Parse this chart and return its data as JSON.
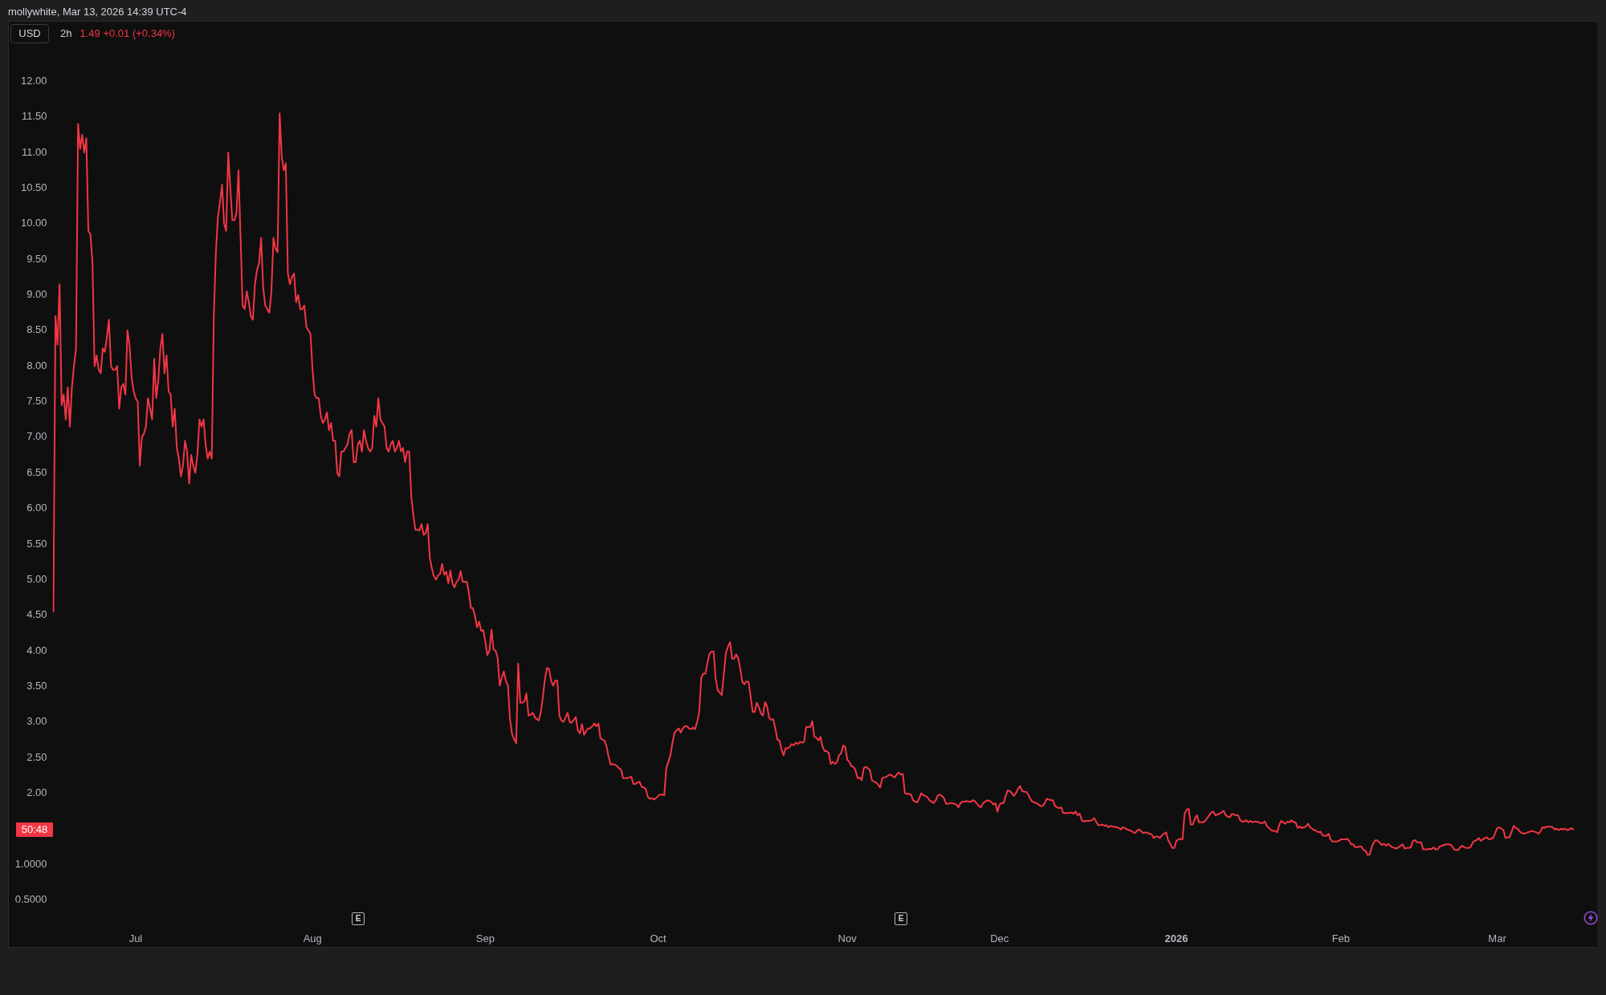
{
  "chart_data": {
    "type": "line",
    "title": "2h",
    "subtitle": "1.49 +0.01 (+0.34%)",
    "ylabel": "USD",
    "annotations": [
      "mollywhite, Mar 13, 2026 14:39 UTC-4",
      "E",
      "E",
      "50:48"
    ],
    "color": "#f23645",
    "ylim": [
      0.5,
      12.85
    ],
    "yticks": [
      {
        "value": 0.5,
        "label": "0.5000"
      },
      {
        "value": 1,
        "label": "1.0000"
      },
      {
        "value": 2,
        "label": "2.00"
      },
      {
        "value": 2.5,
        "label": "2.50"
      },
      {
        "value": 3,
        "label": "3.00"
      },
      {
        "value": 3.5,
        "label": "3.50"
      },
      {
        "value": 4,
        "label": "4.00"
      },
      {
        "value": 4.5,
        "label": "4.50"
      },
      {
        "value": 5,
        "label": "5.00"
      },
      {
        "value": 5.5,
        "label": "5.50"
      },
      {
        "value": 6,
        "label": "6.00"
      },
      {
        "value": 6.5,
        "label": "6.50"
      },
      {
        "value": 7,
        "label": "7.00"
      },
      {
        "value": 7.5,
        "label": "7.50"
      },
      {
        "value": 8,
        "label": "8.00"
      },
      {
        "value": 8.5,
        "label": "8.50"
      },
      {
        "value": 9,
        "label": "9.00"
      },
      {
        "value": 9.5,
        "label": "9.50"
      },
      {
        "value": 10,
        "label": "10.00"
      },
      {
        "value": 10.5,
        "label": "10.50"
      },
      {
        "value": 11,
        "label": "11.00"
      },
      {
        "value": 11.5,
        "label": "11.50"
      },
      {
        "value": 12,
        "label": "12.00"
      }
    ],
    "categories": [
      null,
      null,
      null,
      null,
      null,
      null,
      null,
      null,
      null,
      null,
      null,
      null,
      null,
      null,
      null,
      null,
      null,
      null,
      null,
      null,
      null,
      null,
      null,
      null,
      null,
      null,
      null,
      null,
      null,
      null,
      null,
      null,
      null,
      null,
      null,
      null,
      null,
      null,
      null,
      null,
      "Jul",
      null,
      null,
      null,
      null,
      null,
      null,
      null,
      null,
      null,
      null,
      null,
      null,
      null,
      null,
      null,
      null,
      null,
      null,
      null,
      null,
      null,
      null,
      null,
      null,
      null,
      null,
      null,
      null,
      null,
      null,
      null,
      null,
      null,
      null,
      null,
      null,
      null,
      null,
      null,
      null,
      null,
      null,
      null,
      null,
      null,
      null,
      null,
      null,
      null,
      null,
      null,
      null,
      null,
      null,
      null,
      null,
      null,
      null,
      null,
      null,
      null,
      null,
      null,
      null,
      null,
      null,
      null,
      null,
      null,
      null,
      null,
      null,
      null,
      null,
      null,
      null,
      null,
      null,
      null,
      null,
      null,
      null,
      null,
      null,
      null,
      "Aug",
      null,
      null,
      null,
      null,
      null,
      null,
      null,
      null,
      null,
      null,
      null,
      null,
      null,
      null,
      null,
      null,
      null,
      null,
      null,
      null,
      null,
      null,
      null,
      null,
      null,
      null,
      null,
      null,
      null,
      null,
      null,
      null,
      null,
      null,
      null,
      null,
      null,
      null,
      null,
      null,
      null,
      null,
      null,
      null,
      null,
      null,
      null,
      null,
      null,
      null,
      null,
      null,
      null,
      null,
      null,
      null,
      null,
      null,
      null,
      null,
      null,
      null,
      null,
      null,
      null,
      null,
      null,
      null,
      null,
      null,
      null,
      null,
      null,
      null,
      null,
      null,
      null,
      null,
      null,
      null,
      null,
      null,
      null,
      "Sep",
      null,
      null,
      null,
      null,
      null,
      null,
      null,
      null,
      null,
      null,
      null,
      null,
      null,
      null,
      null,
      null,
      null,
      null,
      null,
      null,
      null,
      null,
      null,
      null,
      null,
      null,
      null,
      null,
      null,
      null,
      null,
      null,
      null,
      null,
      null,
      null,
      null,
      null,
      null,
      null,
      null,
      null,
      null,
      null,
      null,
      null,
      null,
      null,
      null,
      null,
      null,
      null,
      null,
      null,
      null,
      null,
      null,
      null,
      null,
      null,
      null,
      null,
      null,
      null,
      null,
      null,
      null,
      null,
      null,
      null,
      null,
      null,
      null,
      null,
      null,
      null,
      null,
      null,
      null,
      null,
      null,
      null,
      null,
      "Oct",
      null,
      null,
      null,
      null,
      null,
      null,
      null,
      null,
      null,
      null,
      null,
      null,
      null,
      null,
      null,
      null,
      null,
      null,
      null,
      null,
      null,
      null,
      null,
      null,
      null,
      null,
      null,
      null,
      null,
      null,
      null,
      null,
      null,
      null,
      null,
      null,
      null,
      null,
      null,
      null,
      null,
      null,
      null,
      null,
      null,
      null,
      null,
      null,
      null,
      null,
      null,
      null,
      null,
      null,
      null,
      null,
      null,
      null,
      null,
      null,
      null,
      null,
      null,
      null,
      null,
      null,
      null,
      null,
      null,
      null,
      null,
      null,
      null,
      null,
      null,
      null,
      null,
      null,
      null,
      null,
      null,
      null,
      null,
      null,
      null,
      null,
      null,
      null,
      null,
      null,
      null,
      "Nov",
      null,
      null,
      null,
      null,
      null,
      null,
      null,
      null,
      null,
      null,
      null,
      null,
      null,
      null,
      null,
      null,
      null,
      null,
      null,
      null,
      null,
      null,
      null,
      null,
      null,
      null,
      null,
      null,
      null,
      null,
      null,
      null,
      null,
      null,
      null,
      null,
      null,
      null,
      null,
      null,
      null,
      null,
      null,
      null,
      null,
      null,
      null,
      null,
      null,
      null,
      null,
      null,
      null,
      null,
      null,
      null,
      null,
      null,
      null,
      null,
      null,
      null,
      null,
      null,
      null,
      null,
      null,
      null,
      null,
      null,
      null,
      null,
      null,
      "Dec",
      null,
      null,
      null,
      null,
      null,
      null,
      null,
      null,
      null,
      null,
      null,
      null,
      null,
      null,
      null,
      null,
      null,
      null,
      null,
      null,
      null,
      null,
      null,
      null,
      null,
      null,
      null,
      null,
      null,
      null,
      null,
      null,
      null,
      null,
      null,
      null,
      null,
      null,
      null,
      null,
      null,
      null,
      null,
      null,
      null,
      null,
      null,
      null,
      null,
      null,
      null,
      null,
      null,
      null,
      null,
      null,
      null,
      null,
      null,
      null,
      null,
      null,
      null,
      null,
      null,
      null,
      null,
      null,
      null,
      null,
      null,
      null,
      null,
      null,
      null,
      null,
      null,
      null,
      null,
      null,
      null,
      null,
      null,
      null,
      null,
      "2026",
      null,
      null,
      null,
      null,
      null,
      null,
      null,
      null,
      null,
      null,
      null,
      null,
      null,
      null,
      null,
      null,
      null,
      null,
      null,
      null,
      null,
      null,
      null,
      null,
      null,
      null,
      null,
      null,
      null,
      null,
      null,
      null,
      null,
      null,
      null,
      null,
      null,
      null,
      null,
      null,
      null,
      null,
      null,
      null,
      null,
      null,
      null,
      null,
      null,
      null,
      null,
      null,
      null,
      null,
      null,
      null,
      null,
      null,
      null,
      null,
      null,
      null,
      null,
      null,
      null,
      null,
      null,
      null,
      null,
      null,
      null,
      null,
      null,
      null,
      null,
      null,
      null,
      null,
      null,
      "Feb",
      null,
      null,
      null,
      null,
      null,
      null,
      null,
      null,
      null,
      null,
      null,
      null,
      null,
      null,
      null,
      null,
      null,
      null,
      null,
      null,
      null,
      null,
      null,
      null,
      null,
      null,
      null,
      null,
      null,
      null,
      null,
      null,
      null,
      null,
      null,
      null,
      null,
      null,
      null,
      null,
      null,
      null,
      null,
      null,
      null,
      null,
      null,
      null,
      null,
      null,
      null,
      null,
      null,
      null,
      null,
      null,
      null,
      null,
      null,
      null,
      null,
      null,
      null,
      null,
      null,
      null,
      null,
      null,
      null,
      null,
      null,
      null,
      null,
      null,
      null,
      "Mar",
      null,
      null,
      null,
      null,
      null,
      null,
      null,
      null,
      null,
      null,
      null,
      null,
      null,
      null,
      null,
      null,
      null,
      null,
      null,
      null,
      null,
      null,
      null,
      null,
      null,
      null,
      null,
      null,
      null,
      null,
      null,
      null,
      null,
      null,
      null,
      null,
      null
    ],
    "values": [
      4.55,
      8.7,
      8.3,
      9.15,
      7.45,
      7.6,
      7.25,
      7.7,
      7.15,
      7.7,
      8.0,
      8.25,
      11.4,
      11.05,
      11.25,
      11.0,
      11.2,
      9.9,
      9.85,
      9.45,
      8.0,
      8.15,
      7.95,
      7.9,
      8.25,
      8.2,
      8.4,
      8.65,
      8.0,
      7.95,
      7.95,
      8.0,
      7.4,
      7.7,
      7.75,
      7.6,
      8.5,
      8.3,
      7.85,
      7.65,
      7.55,
      7.5,
      6.6,
      7.0,
      7.05,
      7.15,
      7.55,
      7.4,
      7.25,
      8.1,
      7.55,
      7.8,
      8.25,
      8.45,
      7.9,
      8.15,
      7.65,
      7.6,
      7.15,
      7.4,
      6.85,
      6.7,
      6.45,
      6.6,
      6.95,
      6.8,
      6.35,
      6.75,
      6.6,
      6.5,
      6.75,
      7.25,
      7.15,
      7.25,
      6.9,
      6.7,
      6.8,
      6.7,
      8.7,
      9.6,
      10.1,
      10.3,
      10.55,
      10.0,
      9.9,
      11.0,
      10.5,
      10.05,
      10.05,
      10.15,
      10.75,
      9.8,
      8.85,
      8.8,
      9.05,
      8.9,
      8.7,
      8.65,
      9.15,
      9.35,
      9.45,
      9.8,
      9.1,
      8.85,
      8.8,
      8.75,
      9.05,
      9.8,
      9.65,
      9.6,
      11.55,
      10.95,
      10.75,
      10.85,
      9.3,
      9.15,
      9.25,
      9.3,
      8.9,
      9.0,
      8.8,
      8.8,
      8.85,
      8.55,
      8.5,
      8.45,
      7.95,
      7.6,
      7.55,
      7.55,
      7.3,
      7.2,
      7.25,
      7.35,
      7.1,
      7.2,
      6.95,
      6.95,
      6.5,
      6.45,
      6.8,
      6.8,
      6.85,
      6.9,
      7.05,
      7.1,
      6.65,
      6.65,
      6.9,
      6.95,
      6.8,
      7.1,
      6.95,
      6.85,
      6.8,
      6.85,
      7.3,
      7.15,
      7.55,
      7.25,
      7.2,
      7.15,
      6.85,
      6.8,
      6.9,
      6.95,
      6.8,
      6.85,
      6.95,
      6.8,
      6.85,
      6.65,
      6.8,
      6.8,
      6.17,
      5.91,
      5.7,
      5.7,
      5.69,
      5.78,
      5.63,
      5.65,
      5.78,
      5.31,
      5.16,
      5.05,
      5.0,
      5.06,
      5.08,
      5.22,
      5.07,
      5.11,
      4.95,
      5.13,
      4.95,
      4.89,
      4.97,
      5.0,
      5.12,
      4.97,
      4.97,
      4.97,
      4.82,
      4.6,
      4.6,
      4.48,
      4.33,
      4.41,
      4.28,
      4.29,
      4.13,
      3.94,
      4.0,
      4.3,
      4.02,
      4.0,
      3.9,
      3.51,
      3.62,
      3.71,
      3.58,
      3.51,
      3.04,
      2.83,
      2.76,
      2.7,
      3.82,
      3.27,
      3.27,
      3.29,
      3.4,
      3.09,
      3.1,
      3.13,
      3.07,
      3.04,
      3.02,
      3.14,
      3.35,
      3.61,
      3.76,
      3.74,
      3.58,
      3.51,
      3.58,
      3.58,
      3.09,
      3.02,
      3.0,
      3.06,
      3.13,
      3.0,
      2.99,
      3.03,
      3.07,
      2.88,
      2.84,
      2.97,
      2.82,
      2.87,
      2.91,
      2.91,
      2.94,
      2.98,
      2.94,
      2.98,
      2.77,
      2.75,
      2.74,
      2.65,
      2.5,
      2.4,
      2.41,
      2.4,
      2.38,
      2.35,
      2.33,
      2.21,
      2.21,
      2.21,
      2.22,
      2.23,
      2.13,
      2.13,
      2.15,
      2.16,
      2.09,
      2.08,
      2.06,
      1.95,
      1.92,
      1.93,
      1.91,
      1.93,
      1.96,
      1.98,
      1.98,
      1.97,
      2.35,
      2.44,
      2.53,
      2.71,
      2.85,
      2.88,
      2.91,
      2.85,
      2.91,
      2.94,
      2.94,
      2.91,
      2.9,
      2.92,
      2.9,
      3.0,
      3.14,
      3.62,
      3.68,
      3.68,
      3.83,
      3.96,
      3.99,
      3.99,
      3.61,
      3.45,
      3.41,
      3.38,
      3.68,
      3.97,
      4.06,
      4.12,
      3.89,
      3.89,
      3.95,
      3.89,
      3.74,
      3.56,
      3.53,
      3.57,
      3.56,
      3.36,
      3.14,
      3.14,
      3.27,
      3.21,
      3.12,
      3.09,
      3.28,
      3.22,
      3.06,
      3.03,
      3.04,
      2.91,
      2.75,
      2.74,
      2.62,
      2.53,
      2.63,
      2.63,
      2.65,
      2.69,
      2.67,
      2.71,
      2.69,
      2.72,
      2.71,
      2.72,
      2.93,
      2.93,
      2.93,
      3.01,
      2.79,
      2.78,
      2.74,
      2.79,
      2.65,
      2.59,
      2.59,
      2.56,
      2.41,
      2.44,
      2.41,
      2.44,
      2.53,
      2.56,
      2.67,
      2.65,
      2.47,
      2.44,
      2.38,
      2.37,
      2.32,
      2.21,
      2.22,
      2.18,
      2.35,
      2.37,
      2.35,
      2.32,
      2.18,
      2.16,
      2.15,
      2.12,
      2.08,
      2.21,
      2.22,
      2.23,
      2.25,
      2.26,
      2.24,
      2.22,
      2.26,
      2.29,
      2.26,
      2.27,
      2.0,
      1.99,
      1.99,
      1.98,
      1.9,
      1.88,
      1.87,
      1.93,
      2.0,
      1.97,
      1.96,
      1.94,
      1.9,
      1.88,
      1.86,
      1.9,
      1.97,
      1.98,
      1.96,
      1.93,
      1.85,
      1.85,
      1.86,
      1.86,
      1.85,
      1.84,
      1.8,
      1.86,
      1.88,
      1.88,
      1.89,
      1.88,
      1.88,
      1.9,
      1.89,
      1.85,
      1.82,
      1.8,
      1.86,
      1.88,
      1.9,
      1.89,
      1.88,
      1.84,
      1.86,
      1.74,
      1.84,
      1.86,
      1.86,
      1.96,
      2.04,
      2.03,
      2.0,
      1.96,
      2.0,
      2.06,
      2.1,
      2.03,
      2.02,
      2.02,
      1.98,
      1.92,
      1.88,
      1.87,
      1.86,
      1.84,
      1.82,
      1.82,
      1.86,
      1.92,
      1.91,
      1.9,
      1.9,
      1.82,
      1.8,
      1.79,
      1.8,
      1.72,
      1.72,
      1.72,
      1.72,
      1.73,
      1.71,
      1.74,
      1.69,
      1.71,
      1.62,
      1.6,
      1.61,
      1.61,
      1.61,
      1.62,
      1.65,
      1.6,
      1.55,
      1.55,
      1.56,
      1.54,
      1.55,
      1.52,
      1.54,
      1.53,
      1.53,
      1.52,
      1.51,
      1.49,
      1.52,
      1.51,
      1.49,
      1.48,
      1.47,
      1.45,
      1.44,
      1.48,
      1.49,
      1.46,
      1.44,
      1.45,
      1.44,
      1.43,
      1.42,
      1.37,
      1.39,
      1.39,
      1.37,
      1.41,
      1.43,
      1.45,
      1.34,
      1.29,
      1.23,
      1.23,
      1.33,
      1.35,
      1.36,
      1.35,
      1.71,
      1.77,
      1.78,
      1.56,
      1.56,
      1.64,
      1.69,
      1.59,
      1.59,
      1.59,
      1.61,
      1.65,
      1.69,
      1.73,
      1.74,
      1.69,
      1.7,
      1.71,
      1.73,
      1.75,
      1.69,
      1.67,
      1.66,
      1.71,
      1.7,
      1.69,
      1.69,
      1.62,
      1.6,
      1.6,
      1.62,
      1.59,
      1.61,
      1.59,
      1.6,
      1.6,
      1.59,
      1.58,
      1.58,
      1.6,
      1.54,
      1.51,
      1.48,
      1.47,
      1.47,
      1.45,
      1.55,
      1.61,
      1.59,
      1.57,
      1.6,
      1.59,
      1.62,
      1.59,
      1.59,
      1.51,
      1.53,
      1.51,
      1.52,
      1.53,
      1.57,
      1.52,
      1.5,
      1.48,
      1.47,
      1.45,
      1.46,
      1.41,
      1.4,
      1.4,
      1.43,
      1.35,
      1.32,
      1.32,
      1.32,
      1.33,
      1.35,
      1.35,
      1.35,
      1.36,
      1.33,
      1.28,
      1.28,
      1.24,
      1.24,
      1.25,
      1.25,
      1.2,
      1.19,
      1.13,
      1.14,
      1.24,
      1.31,
      1.34,
      1.33,
      1.3,
      1.27,
      1.29,
      1.26,
      1.29,
      1.26,
      1.24,
      1.23,
      1.22,
      1.24,
      1.26,
      1.28,
      1.22,
      1.23,
      1.23,
      1.24,
      1.33,
      1.34,
      1.31,
      1.31,
      1.31,
      1.21,
      1.21,
      1.21,
      1.22,
      1.21,
      1.24,
      1.21,
      1.21,
      1.25,
      1.26,
      1.27,
      1.28,
      1.28,
      1.28,
      1.26,
      1.21,
      1.2,
      1.2,
      1.24,
      1.26,
      1.24,
      1.23,
      1.23,
      1.24,
      1.3,
      1.33,
      1.34,
      1.37,
      1.33,
      1.35,
      1.37,
      1.38,
      1.35,
      1.36,
      1.37,
      1.44,
      1.51,
      1.52,
      1.5,
      1.48,
      1.37,
      1.38,
      1.38,
      1.46,
      1.54,
      1.51,
      1.5,
      1.46,
      1.44,
      1.43,
      1.44,
      1.45,
      1.46,
      1.47,
      1.46,
      1.45,
      1.43,
      1.46,
      1.52,
      1.51,
      1.53,
      1.53,
      1.53,
      1.52,
      1.49,
      1.5,
      1.48,
      1.5,
      1.49,
      1.5,
      1.48,
      1.49,
      1.51,
      1.49
    ]
  }
}
